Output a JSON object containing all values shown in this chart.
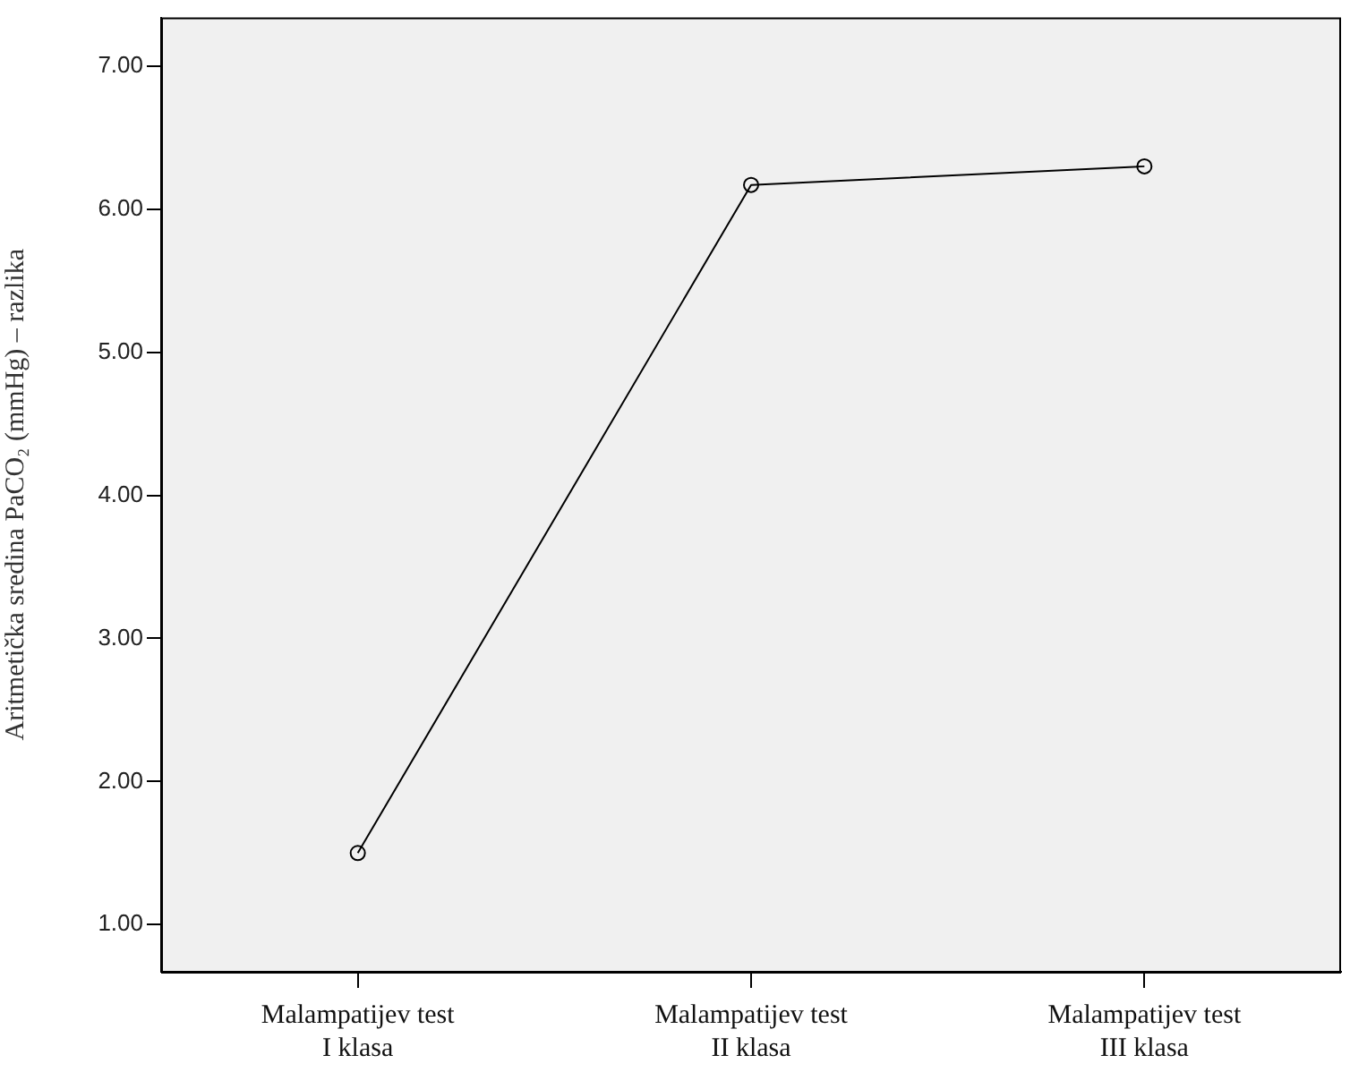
{
  "chart_data": {
    "type": "line",
    "ylabel": "Aritmetička sredina PaCO₂ (mmHg) – razlika",
    "categories": [
      "Malampatijev test\nI klasa",
      "Malampatijev test\nII klasa",
      "Malampatijev test\nIII klasa"
    ],
    "values": [
      1.5,
      6.17,
      6.3
    ],
    "color": "#000000",
    "marker": "circle",
    "line_style": "solid",
    "grid": false,
    "legend": false,
    "ylim": [
      0.67,
      7.34
    ],
    "yticks": [
      {
        "value": 1,
        "label": "1.00"
      },
      {
        "value": 2,
        "label": "2.00"
      },
      {
        "value": 3,
        "label": "3.00"
      },
      {
        "value": 4,
        "label": "4.00"
      },
      {
        "value": 5,
        "label": "5.00"
      },
      {
        "value": 6,
        "label": "6.00"
      },
      {
        "value": 7,
        "label": "7.00"
      }
    ]
  }
}
